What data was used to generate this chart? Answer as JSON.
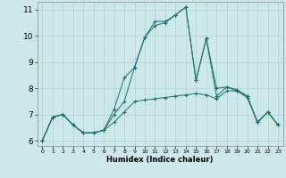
{
  "xlabel": "Humidex (Indice chaleur)",
  "x": [
    0,
    1,
    2,
    3,
    4,
    5,
    6,
    7,
    8,
    9,
    10,
    11,
    12,
    13,
    14,
    15,
    16,
    17,
    18,
    19,
    20,
    21,
    22,
    23
  ],
  "line1": [
    6.0,
    6.9,
    7.0,
    6.6,
    6.3,
    6.3,
    6.4,
    6.7,
    7.1,
    7.5,
    7.55,
    7.6,
    7.65,
    7.7,
    7.75,
    7.8,
    7.75,
    7.6,
    7.9,
    7.9,
    7.65,
    6.7,
    7.1,
    6.6
  ],
  "line2": [
    6.0,
    6.9,
    7.0,
    6.6,
    6.3,
    6.3,
    6.4,
    7.0,
    7.5,
    8.8,
    9.95,
    10.4,
    10.5,
    10.8,
    11.1,
    8.3,
    9.9,
    7.7,
    8.05,
    7.9,
    7.7,
    6.7,
    7.1,
    6.6
  ],
  "line3": [
    6.0,
    6.9,
    7.0,
    6.6,
    6.3,
    6.3,
    6.4,
    7.2,
    8.4,
    8.8,
    9.95,
    10.55,
    10.55,
    10.8,
    11.1,
    8.3,
    9.9,
    8.0,
    8.05,
    7.95,
    7.7,
    6.7,
    7.1,
    6.6
  ],
  "bg_color": "#cce8e8",
  "grid_color": "#b0d4d4",
  "line_color": "#1a6e6e",
  "ylim_min": 5.8,
  "ylim_max": 11.3,
  "xlim_min": -0.5,
  "xlim_max": 23.5,
  "yticks": [
    6,
    7,
    8,
    9,
    10,
    11
  ],
  "xticks": [
    0,
    1,
    2,
    3,
    4,
    5,
    6,
    7,
    8,
    9,
    10,
    11,
    12,
    13,
    14,
    15,
    16,
    17,
    18,
    19,
    20,
    21,
    22,
    23
  ]
}
